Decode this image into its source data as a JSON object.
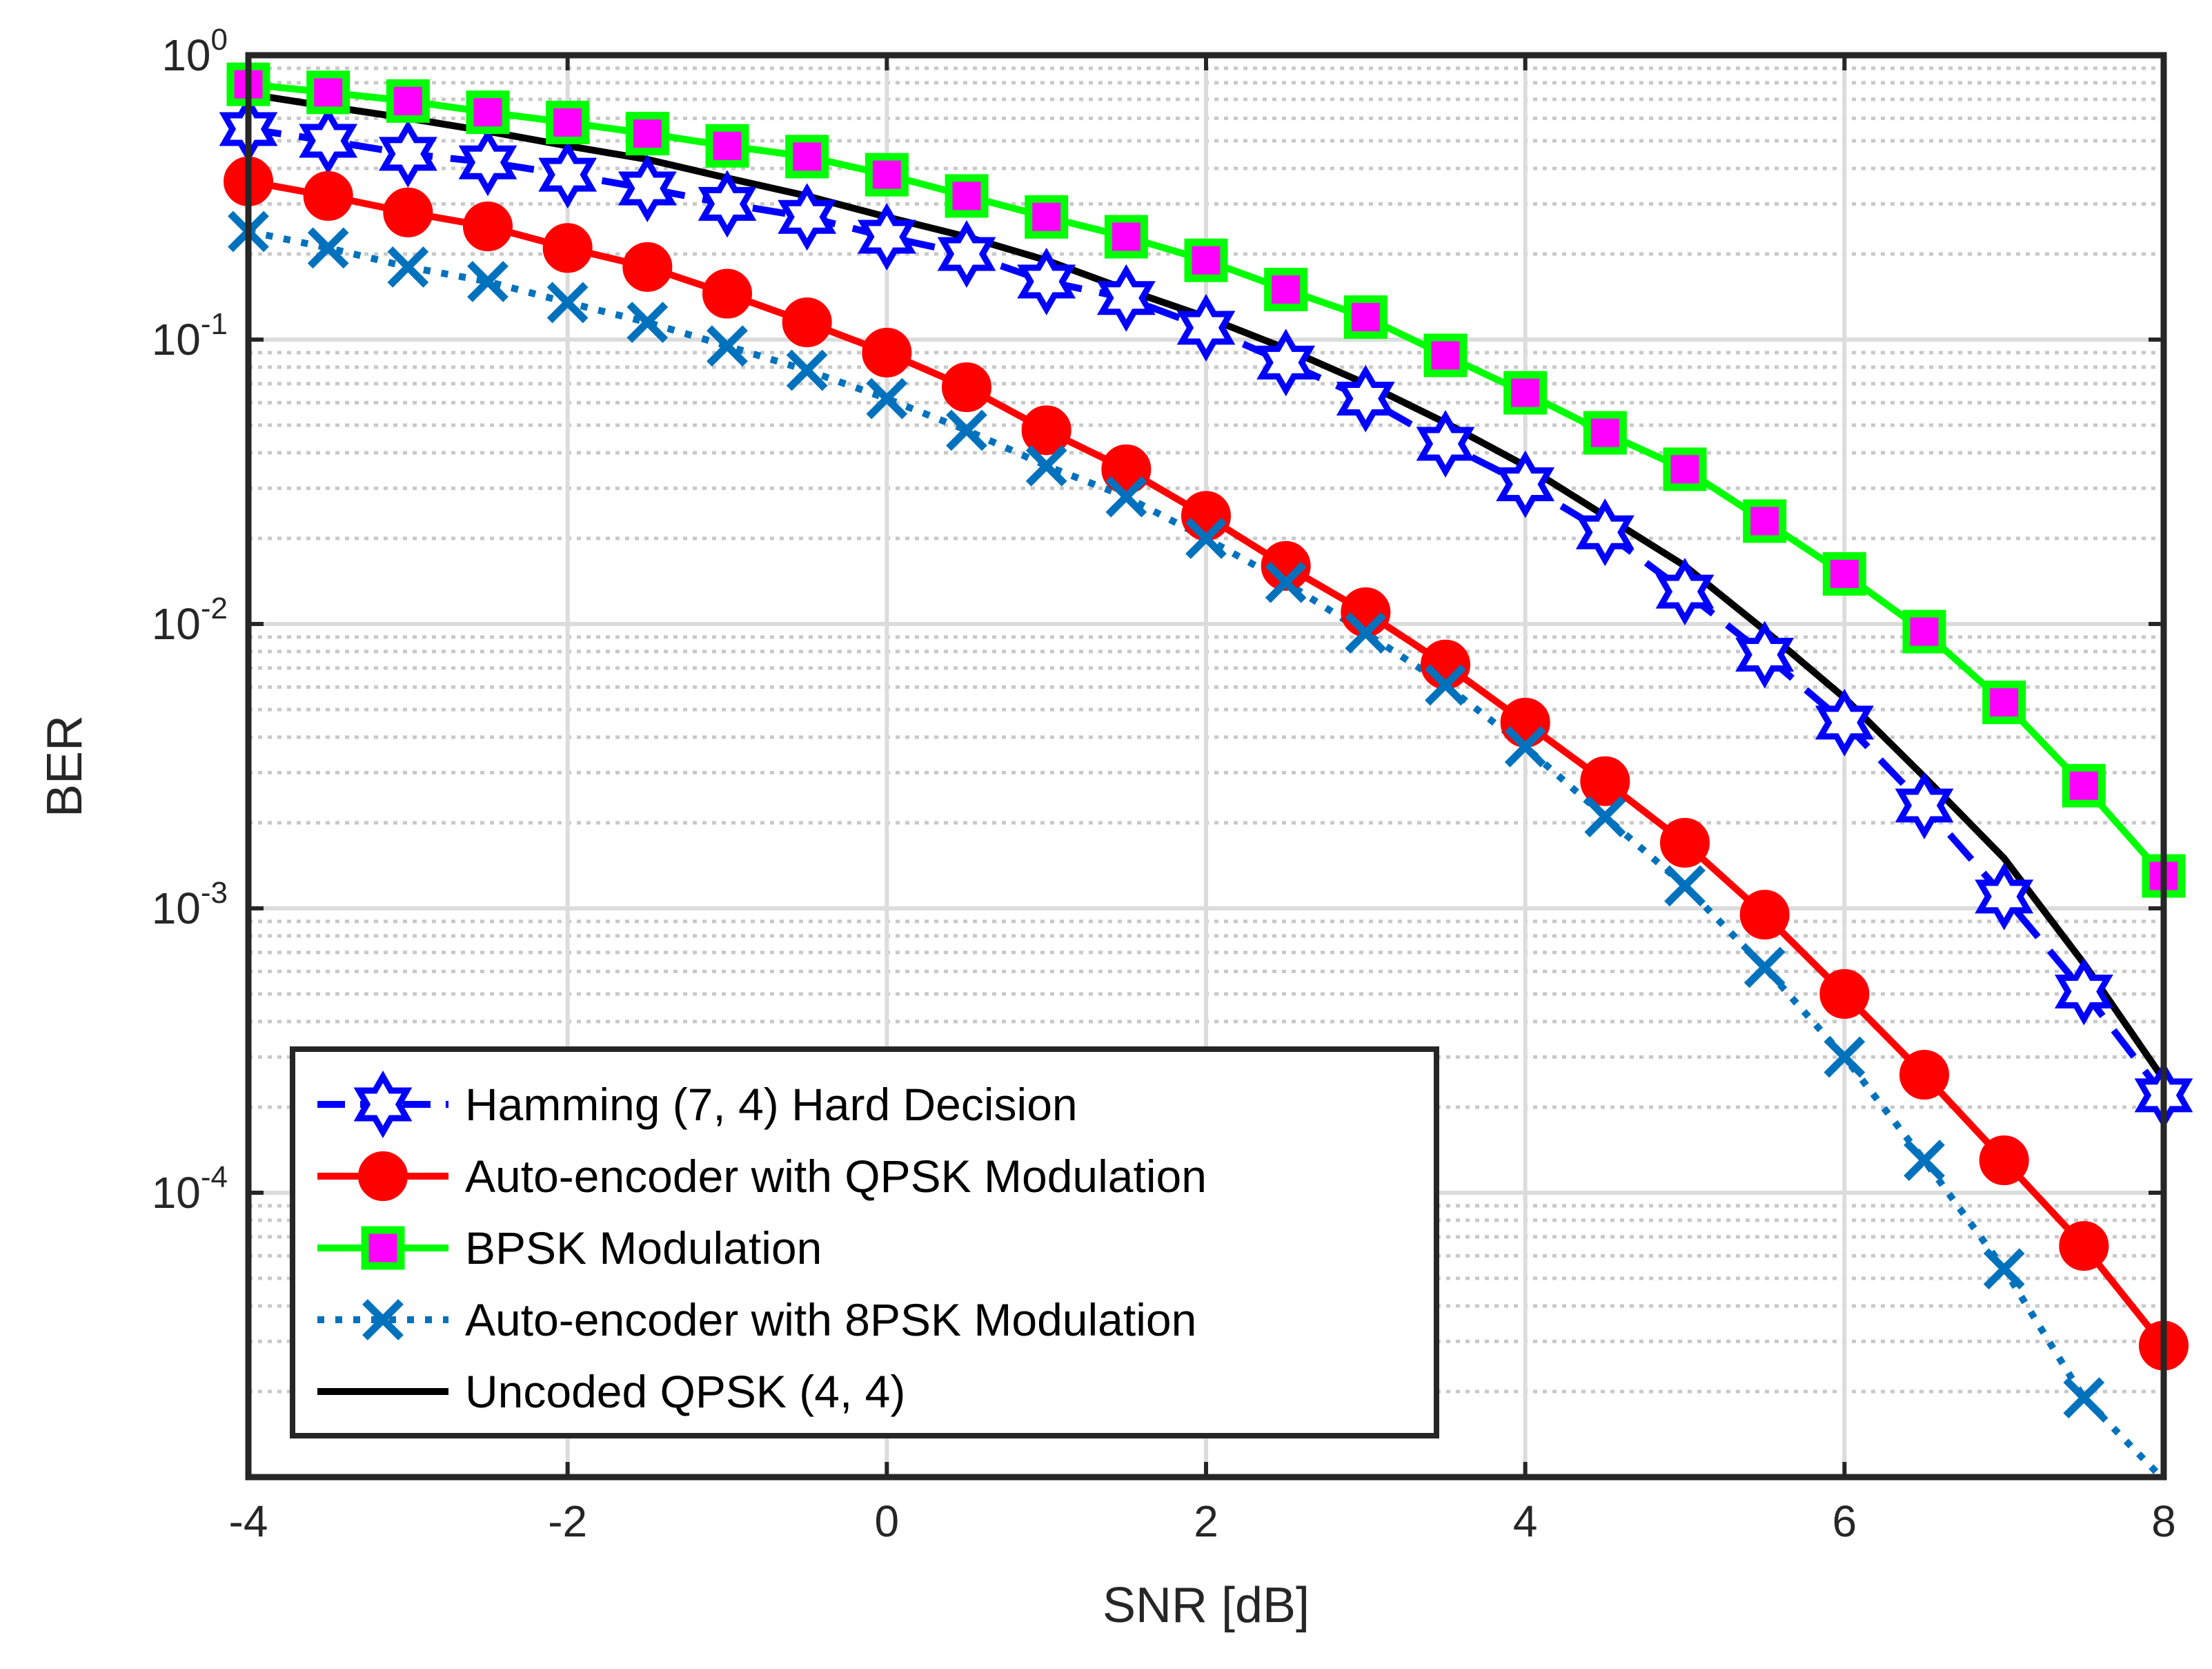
{
  "chart_data": {
    "type": "line",
    "title": "",
    "xlabel": "SNR [dB]",
    "ylabel": "BER",
    "xlim": [
      -4,
      8
    ],
    "ylim": [
      1e-05,
      1
    ],
    "yscale": "log",
    "grid": true,
    "legend_position": "bottom-left",
    "x_ticks": [
      -4,
      -2,
      0,
      2,
      4,
      6,
      8
    ],
    "x_tick_labels": [
      "-4",
      "-2",
      "0",
      "2",
      "4",
      "6",
      "8"
    ],
    "y_ticks": [
      1,
      0.1,
      0.01,
      0.001,
      0.0001
    ],
    "y_tick_labels": [
      {
        "base": "10",
        "exp": "0"
      },
      {
        "base": "10",
        "exp": "-1"
      },
      {
        "base": "10",
        "exp": "-2"
      },
      {
        "base": "10",
        "exp": "-3"
      },
      {
        "base": "10",
        "exp": "-4"
      }
    ],
    "x": [
      -4,
      -3.5,
      -3,
      -2.5,
      -2,
      -1.5,
      -1,
      -0.5,
      0,
      0.5,
      1,
      1.5,
      2,
      2.5,
      3,
      3.5,
      4,
      4.5,
      5,
      5.5,
      6,
      6.5,
      7,
      7.5,
      8
    ],
    "series": [
      {
        "name": "Hamming (7, 4) Hard Decision",
        "color": "#0000ff",
        "marker": "hexagram",
        "marker_face": "#ffffff",
        "line_style": "dashed",
        "values": [
          0.55,
          0.5,
          0.45,
          0.42,
          0.38,
          0.34,
          0.3,
          0.27,
          0.23,
          0.2,
          0.16,
          0.14,
          0.11,
          0.083,
          0.062,
          0.043,
          0.031,
          0.021,
          0.013,
          0.0078,
          0.0045,
          0.0023,
          0.0011,
          0.00051,
          0.00022
        ]
      },
      {
        "name": "Auto-encoder with QPSK Modulation",
        "color": "#ff0000",
        "marker": "circle",
        "marker_face": "#ff0000",
        "line_style": "solid",
        "values": [
          0.36,
          0.32,
          0.28,
          0.25,
          0.21,
          0.18,
          0.145,
          0.115,
          0.09,
          0.068,
          0.048,
          0.035,
          0.024,
          0.016,
          0.011,
          0.0072,
          0.0045,
          0.0028,
          0.0017,
          0.00095,
          0.0005,
          0.00026,
          0.00013,
          6.5e-05,
          2.9e-05
        ]
      },
      {
        "name": "BPSK Modulation",
        "color": "#00ff00",
        "marker": "square",
        "marker_face": "#ff00ff",
        "line_style": "solid",
        "values": [
          0.79,
          0.74,
          0.69,
          0.63,
          0.58,
          0.53,
          0.48,
          0.44,
          0.38,
          0.32,
          0.27,
          0.23,
          0.19,
          0.15,
          0.12,
          0.088,
          0.065,
          0.047,
          0.035,
          0.023,
          0.015,
          0.0094,
          0.0053,
          0.0027,
          0.0013
        ]
      },
      {
        "name": "Auto-encoder with 8PSK Modulation",
        "color": "#0072bd",
        "marker": "x",
        "marker_face": "none",
        "line_style": "dotted",
        "values": [
          0.24,
          0.21,
          0.18,
          0.16,
          0.135,
          0.115,
          0.095,
          0.078,
          0.062,
          0.048,
          0.036,
          0.028,
          0.02,
          0.014,
          0.0093,
          0.0061,
          0.0037,
          0.0021,
          0.0012,
          0.00062,
          0.0003,
          0.00013,
          5.4e-05,
          1.9e-05,
          9.8e-06
        ]
      },
      {
        "name": "Uncoded QPSK (4, 4)",
        "color": "#000000",
        "marker": "none",
        "marker_face": "none",
        "line_style": "solid",
        "values": [
          0.73,
          0.66,
          0.6,
          0.54,
          0.48,
          0.43,
          0.37,
          0.32,
          0.27,
          0.23,
          0.19,
          0.15,
          0.12,
          0.093,
          0.07,
          0.051,
          0.036,
          0.024,
          0.016,
          0.0095,
          0.0055,
          0.0029,
          0.0015,
          0.00064,
          0.00025
        ]
      }
    ]
  }
}
